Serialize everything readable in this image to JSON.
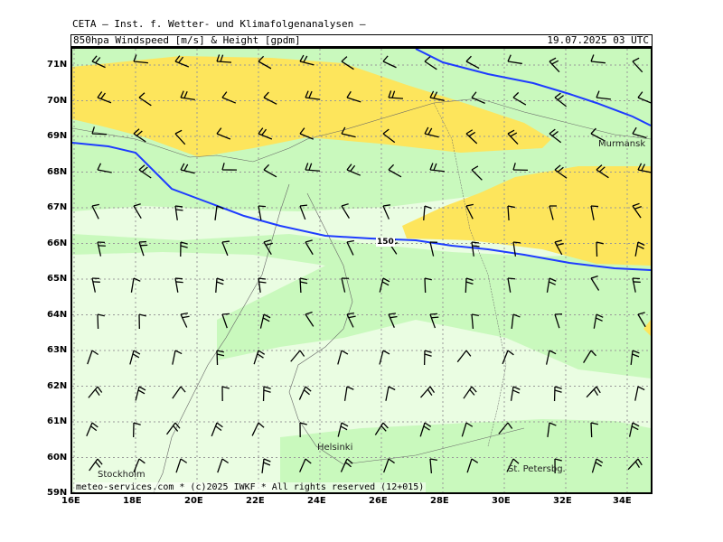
{
  "header": {
    "organization": "CETA — Inst. f. Wetter- und Klimafolgenanalysen —",
    "parameter": "850hpa Windspeed [m/s] & Height [gpdm]",
    "valid_time": "19.07.2025 03 UTC"
  },
  "footer": {
    "copyright": "meteo-services.com * (c)2025 IWKF * All rights reserved (12+015)"
  },
  "axes": {
    "lat_labels": [
      "71N",
      "70N",
      "69N",
      "68N",
      "67N",
      "66N",
      "65N",
      "64N",
      "63N",
      "62N",
      "61N",
      "60N",
      "59N"
    ],
    "lon_labels": [
      "16E",
      "18E",
      "20E",
      "22E",
      "24E",
      "26E",
      "28E",
      "30E",
      "32E",
      "34E"
    ]
  },
  "contour_label": "150",
  "cities": {
    "murmansk": "Murmansk",
    "helsinki": "Helsinki",
    "stockholm": "Stockholm",
    "st_petersburg": "St. Petersbg."
  },
  "colors": {
    "background": "#eafde2",
    "band_light_green": "#c9f9bd",
    "band_yellow": "#fde55c",
    "height_contour": "#1e3cff",
    "grid": "#999999"
  }
}
